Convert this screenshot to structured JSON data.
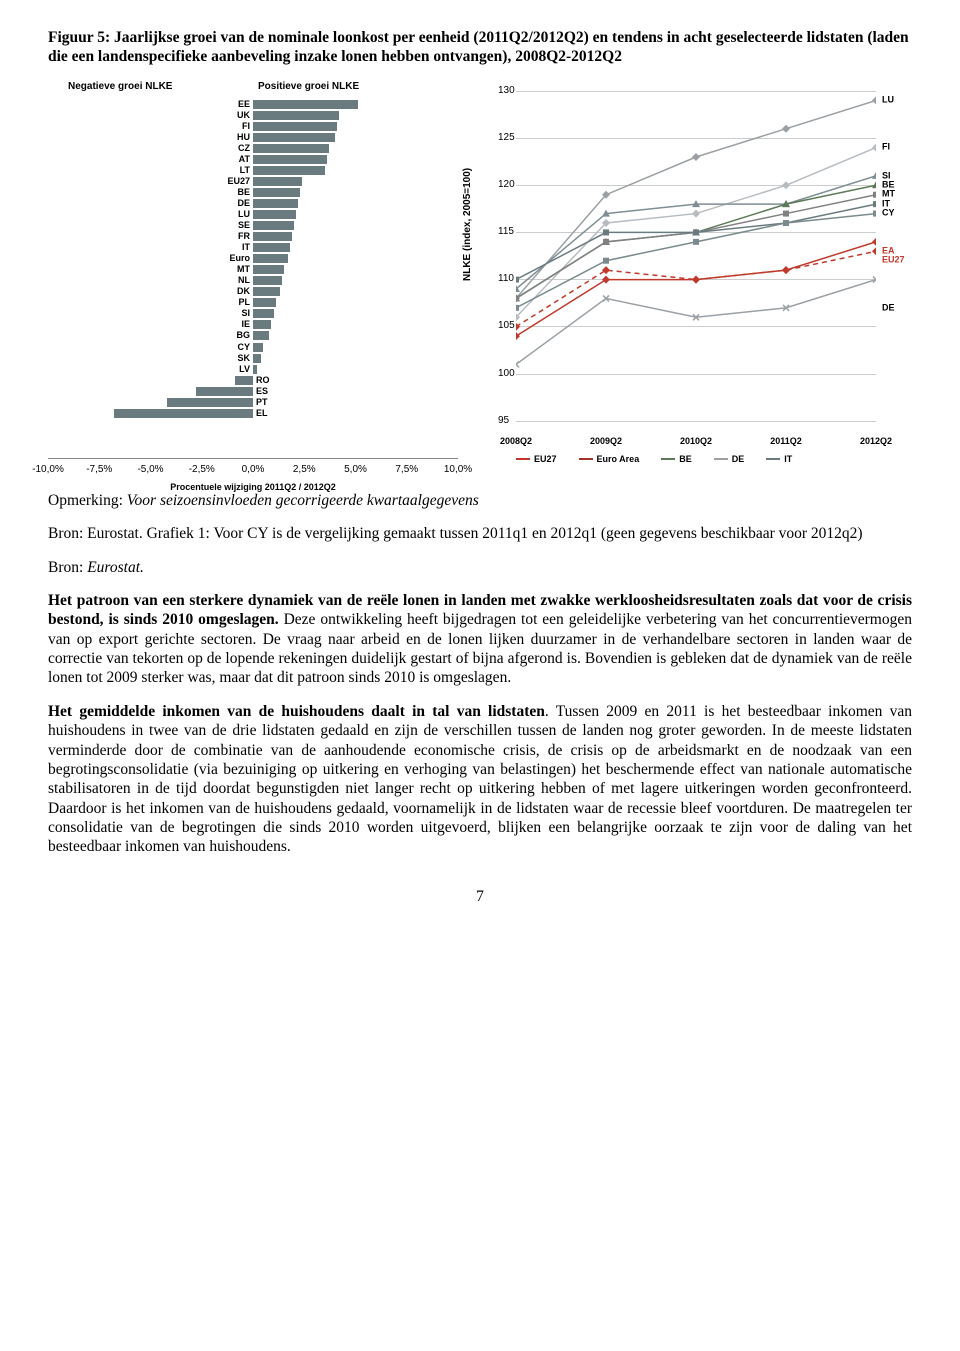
{
  "figure_title": "Figuur 5: Jaarlijkse groei van de nominale loonkost per eenheid (2011Q2/2012Q2) en tendens in acht geselecteerde lidstaten (laden die een landenspecifieke aanbeveling inzake lonen hebben ontvangen), 2008Q2-2012Q2",
  "bar_chart": {
    "neg_label": "Negatieve groei NLKE",
    "pos_label": "Positieve groei NLKE",
    "xlabel": "Procentuele wijziging 2011Q2 / 2012Q2",
    "xmin": -10.0,
    "xmax": 10.0,
    "xtick_step": 2.5,
    "xticks": [
      "-10,0%",
      "-7,5%",
      "-5,0%",
      "-2,5%",
      "0,0%",
      "2,5%",
      "5,0%",
      "7,5%",
      "10,0%"
    ],
    "bar_color": "#6a7b7f",
    "categories": [
      "EE",
      "UK",
      "FI",
      "HU",
      "CZ",
      "AT",
      "LT",
      "EU27",
      "BE",
      "DE",
      "LU",
      "SE",
      "FR",
      "IT",
      "Euro",
      "MT",
      "NL",
      "DK",
      "PL",
      "SI",
      "IE",
      "BG",
      "CY",
      "SK",
      "LV",
      "RO",
      "ES",
      "PT",
      "EL"
    ],
    "values": [
      5.1,
      4.2,
      4.1,
      4.0,
      3.7,
      3.6,
      3.5,
      2.4,
      2.3,
      2.2,
      2.1,
      2.0,
      1.9,
      1.8,
      1.7,
      1.5,
      1.4,
      1.3,
      1.1,
      1.0,
      0.9,
      0.8,
      0.5,
      0.4,
      0.2,
      -0.9,
      -2.8,
      -4.2,
      -6.8
    ]
  },
  "line_chart": {
    "ylabel": "NLKE (index, 2005=100)",
    "ymin": 95,
    "ymax": 130,
    "ytick_step": 5,
    "yticks": [
      "95",
      "100",
      "105",
      "110",
      "115",
      "120",
      "125",
      "130"
    ],
    "x_categories": [
      "2008Q2",
      "2009Q2",
      "2010Q2",
      "2011Q2",
      "2012Q2"
    ],
    "grid_color": "#cccccc",
    "background": "#ffffff",
    "series": [
      {
        "name": "LU",
        "color": "#9aa0a4",
        "marker": "diamond",
        "values": [
          108,
          119,
          123,
          126,
          129
        ]
      },
      {
        "name": "FI",
        "color": "#b7bcc1",
        "marker": "diamond",
        "values": [
          106,
          116,
          117,
          120,
          124
        ]
      },
      {
        "name": "SI",
        "color": "#7e8e93",
        "marker": "triangle",
        "values": [
          109,
          117,
          118,
          118,
          121
        ]
      },
      {
        "name": "BE",
        "color": "#5c7a57",
        "marker": "triangle",
        "values": [
          108,
          114,
          115,
          118,
          120
        ]
      },
      {
        "name": "MT",
        "color": "#808080",
        "marker": "square",
        "values": [
          108,
          114,
          115,
          117,
          119
        ]
      },
      {
        "name": "IT",
        "color": "#6a7b7f",
        "marker": "square",
        "values": [
          110,
          115,
          115,
          116,
          118
        ]
      },
      {
        "name": "CY",
        "color": "#7b8a8e",
        "marker": "square",
        "values": [
          107,
          112,
          114,
          116,
          117
        ]
      },
      {
        "name": "EA",
        "color": "#c0392b",
        "marker": "diamond",
        "dash": true,
        "values": [
          105,
          111,
          110,
          111,
          113
        ]
      },
      {
        "name": "EU27",
        "color": "#c0392b",
        "marker": "diamond",
        "values": [
          104,
          110,
          110,
          111,
          114
        ]
      },
      {
        "name": "DE",
        "color": "#9aa0a4",
        "marker": "x",
        "values": [
          101,
          108,
          106,
          107,
          110
        ]
      }
    ],
    "legend": [
      {
        "label": "EU27",
        "color": "#c0392b"
      },
      {
        "label": "Euro Area",
        "color": "#a03428"
      },
      {
        "label": "BE",
        "color": "#5c7a57"
      },
      {
        "label": "DE",
        "color": "#9aa0a4"
      },
      {
        "label": "IT",
        "color": "#6a7b7f"
      }
    ],
    "end_labels": [
      {
        "label": "LU",
        "y": 129,
        "color": "#000"
      },
      {
        "label": "FI",
        "y": 124,
        "color": "#000"
      },
      {
        "label": "SI",
        "y": 121,
        "color": "#000"
      },
      {
        "label": "BE",
        "y": 120,
        "color": "#000"
      },
      {
        "label": "MT",
        "y": 119,
        "color": "#000"
      },
      {
        "label": "IT",
        "y": 118,
        "color": "#000"
      },
      {
        "label": "CY",
        "y": 117,
        "color": "#000"
      },
      {
        "label": "EA",
        "y": 113,
        "color": "#c0392b"
      },
      {
        "label": "EU27",
        "y": 112,
        "color": "#c0392b"
      },
      {
        "label": "DE",
        "y": 107,
        "color": "#000"
      }
    ]
  },
  "note_line": "Opmerking: Voor seizoensinvloeden gecorrigeerde kwartaalgegevens",
  "source1": "Bron: Eurostat. Grafiek 1: Voor CY is de vergelijking gemaakt tussen 2011q1 en 2012q1 (geen gegevens beschikbaar voor 2012q2)",
  "source2_prefix": "Bron: ",
  "source2_italic": "Eurostat.",
  "para1_bold": "Het patroon van een sterkere dynamiek van de reële lonen in landen met zwakke werkloosheidsresultaten zoals dat voor de crisis bestond, is sinds 2010 omgeslagen.",
  "para1_rest": " Deze ontwikkeling heeft bijgedragen tot een geleidelijke verbetering van het concurrentievermogen van op export gerichte sectoren. De vraag naar arbeid en de lonen lijken duurzamer in de verhandelbare sectoren in landen waar de correctie van tekorten op de lopende rekeningen duidelijk gestart of bijna afgerond is. Bovendien is gebleken dat de dynamiek van de reële lonen tot 2009 sterker was, maar dat dit patroon sinds 2010 is omgeslagen.",
  "para2_bold": "Het gemiddelde inkomen van de huishoudens daalt in tal van lidstaten",
  "para2_rest": ". Tussen 2009 en 2011 is het besteedbaar inkomen van huishoudens in twee van de drie lidstaten gedaald en zijn de verschillen tussen de landen nog groter geworden. In de meeste lidstaten verminderde door de combinatie van de aanhoudende economische crisis, de crisis op de arbeidsmarkt en de noodzaak van een begrotingsconsolidatie (via bezuiniging op uitkering en verhoging van belastingen) het beschermende effect van nationale automatische stabilisatoren in de tijd doordat begunstigden niet langer recht op uitkering hebben of met lagere uitkeringen worden geconfronteerd. Daardoor is het inkomen van de huishoudens gedaald, voornamelijk in de lidstaten waar de recessie bleef voortduren. De maatregelen ter consolidatie van de begrotingen die sinds 2010 worden uitgevoerd, blijken een belangrijke oorzaak te zijn voor de daling van het besteedbaar inkomen van huishoudens.",
  "page_number": "7"
}
